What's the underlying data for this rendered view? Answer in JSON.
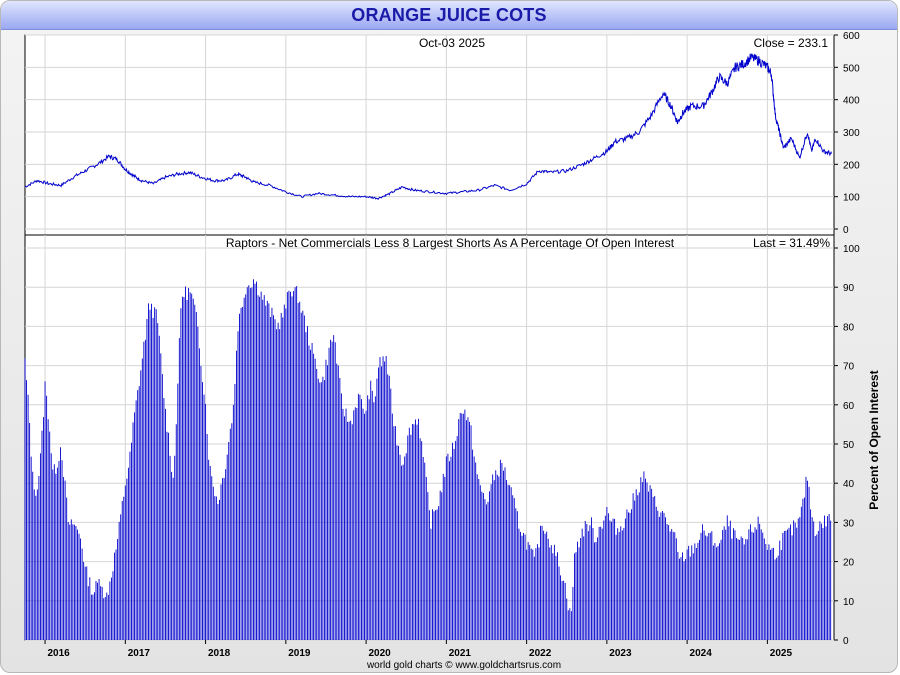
{
  "title": "ORANGE JUICE COTS",
  "credit": "world gold charts © www.goldchartsrus.com",
  "colors": {
    "series": "#0000cc",
    "grid": "#d6d6d6"
  },
  "chart_data": [
    {
      "type": "line",
      "panel": "price",
      "date_label": "Oct-03  2025",
      "last_label": "Close = 233.1",
      "ylim": [
        0,
        600
      ],
      "yticks": [
        0,
        100,
        200,
        300,
        400,
        500,
        600
      ],
      "x_range": [
        2015.75,
        2025.83
      ],
      "x": [
        2015.75,
        2015.9,
        2016.05,
        2016.2,
        2016.35,
        2016.5,
        2016.65,
        2016.8,
        2016.9,
        2017.0,
        2017.1,
        2017.2,
        2017.35,
        2017.5,
        2017.65,
        2017.8,
        2017.95,
        2018.1,
        2018.25,
        2018.4,
        2018.5,
        2018.6,
        2018.8,
        2019.0,
        2019.2,
        2019.4,
        2019.6,
        2019.8,
        2020.0,
        2020.15,
        2020.3,
        2020.45,
        2020.6,
        2020.8,
        2021.0,
        2021.2,
        2021.4,
        2021.6,
        2021.8,
        2022.0,
        2022.15,
        2022.3,
        2022.5,
        2022.7,
        2022.85,
        2023.0,
        2023.1,
        2023.25,
        2023.4,
        2023.55,
        2023.7,
        2023.8,
        2023.88,
        2023.95,
        2024.05,
        2024.2,
        2024.3,
        2024.4,
        2024.5,
        2024.6,
        2024.7,
        2024.8,
        2024.9,
        2025.0,
        2025.05,
        2025.1,
        2025.15,
        2025.2,
        2025.3,
        2025.4,
        2025.5,
        2025.55,
        2025.6,
        2025.7,
        2025.8
      ],
      "values": [
        130,
        150,
        140,
        135,
        160,
        180,
        200,
        225,
        215,
        185,
        165,
        150,
        140,
        160,
        170,
        175,
        160,
        150,
        150,
        170,
        160,
        145,
        135,
        115,
        100,
        110,
        105,
        100,
        100,
        95,
        110,
        130,
        120,
        115,
        110,
        115,
        120,
        135,
        120,
        140,
        180,
        175,
        180,
        200,
        220,
        240,
        270,
        280,
        300,
        350,
        420,
        380,
        330,
        360,
        380,
        380,
        420,
        470,
        450,
        500,
        510,
        530,
        520,
        500,
        480,
        350,
        300,
        250,
        280,
        220,
        300,
        240,
        280,
        240,
        233.1
      ]
    },
    {
      "type": "bar",
      "panel": "cot",
      "title": "Raptors - Net Commercials Less 8 Largest Shorts As A Percentage Of Open Interest",
      "last_label": "Last = 31.49%",
      "ylabel": "Percent of Open Interest",
      "ylim": [
        0,
        100
      ],
      "yticks": [
        0,
        10,
        20,
        30,
        40,
        50,
        60,
        70,
        80,
        90,
        100
      ],
      "x_range": [
        2015.75,
        2025.83
      ],
      "x_ticks": [
        "2016",
        "2017",
        "2018",
        "2019",
        "2020",
        "2021",
        "2022",
        "2023",
        "2024",
        "2025"
      ],
      "x": [
        2015.75,
        2015.8,
        2015.85,
        2015.9,
        2015.95,
        2016.0,
        2016.05,
        2016.1,
        2016.15,
        2016.2,
        2016.3,
        2016.35,
        2016.45,
        2016.5,
        2016.6,
        2016.7,
        2016.75,
        2016.8,
        2016.9,
        2017.0,
        2017.05,
        2017.1,
        2017.2,
        2017.3,
        2017.4,
        2017.5,
        2017.55,
        2017.6,
        2017.7,
        2017.8,
        2017.85,
        2017.9,
        2018.0,
        2018.05,
        2018.15,
        2018.25,
        2018.35,
        2018.4,
        2018.5,
        2018.6,
        2018.7,
        2018.8,
        2018.9,
        2019.0,
        2019.05,
        2019.15,
        2019.25,
        2019.35,
        2019.45,
        2019.55,
        2019.6,
        2019.7,
        2019.8,
        2019.9,
        2020.0,
        2020.05,
        2020.1,
        2020.15,
        2020.25,
        2020.35,
        2020.45,
        2020.55,
        2020.65,
        2020.75,
        2020.8,
        2020.9,
        2021.0,
        2021.1,
        2021.2,
        2021.3,
        2021.4,
        2021.5,
        2021.6,
        2021.7,
        2021.8,
        2021.9,
        2022.0,
        2022.1,
        2022.2,
        2022.3,
        2022.4,
        2022.5,
        2022.55,
        2022.6,
        2022.7,
        2022.8,
        2022.85,
        2022.9,
        2023.0,
        2023.05,
        2023.15,
        2023.3,
        2023.45,
        2023.6,
        2023.75,
        2023.85,
        2023.9,
        2024.0,
        2024.1,
        2024.2,
        2024.3,
        2024.4,
        2024.5,
        2024.6,
        2024.7,
        2024.8,
        2024.9,
        2025.0,
        2025.1,
        2025.2,
        2025.3,
        2025.4,
        2025.5,
        2025.55,
        2025.6,
        2025.7,
        2025.8
      ],
      "values": [
        71,
        58,
        40,
        38,
        48,
        65,
        56,
        42,
        45,
        50,
        28,
        30,
        26,
        18,
        12,
        16,
        10,
        14,
        25,
        40,
        45,
        55,
        70,
        86,
        82,
        58,
        50,
        40,
        88,
        89,
        86,
        80,
        60,
        44,
        35,
        45,
        60,
        80,
        90,
        92,
        88,
        84,
        80,
        85,
        90,
        88,
        80,
        72,
        65,
        75,
        78,
        60,
        55,
        62,
        58,
        65,
        60,
        70,
        72,
        55,
        45,
        54,
        57,
        40,
        30,
        35,
        45,
        50,
        60,
        54,
        40,
        35,
        42,
        45,
        38,
        30,
        25,
        20,
        30,
        25,
        20,
        12,
        5,
        22,
        28,
        30,
        26,
        28,
        33,
        30,
        28,
        34,
        42,
        35,
        30,
        26,
        20,
        22,
        24,
        28,
        26,
        24,
        30,
        26,
        24,
        28,
        30,
        24,
        22,
        26,
        28,
        30,
        42,
        32,
        28,
        30,
        31.49
      ]
    }
  ]
}
